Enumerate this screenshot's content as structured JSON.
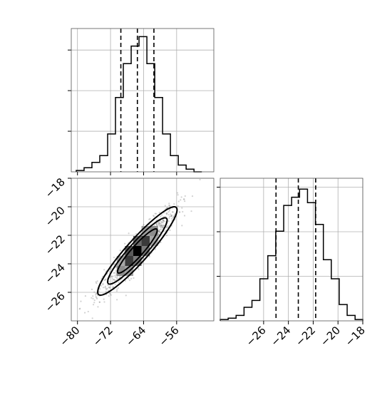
{
  "chart_data": [
    {
      "id": "hist_x",
      "type": "histogram",
      "title": "",
      "xlabel": "",
      "ylabel": "",
      "xlim": [
        -81.5,
        -47
      ],
      "xticks": [
        -80,
        -72,
        -64,
        -56
      ],
      "xtick_labels_visible": false,
      "yticks_count": 3,
      "ytick_labels_visible": false,
      "grid": true,
      "bin_edges": [
        -80.3,
        -78.4,
        -76.5,
        -74.6,
        -72.7,
        -70.8,
        -68.9,
        -67.0,
        -65.1,
        -63.2,
        -61.3,
        -59.4,
        -57.5,
        -55.6,
        -53.7,
        -51.8,
        -49.9
      ],
      "counts": [
        0.01,
        0.03,
        0.07,
        0.12,
        0.28,
        0.55,
        0.8,
        0.93,
        1.0,
        0.8,
        0.55,
        0.28,
        0.12,
        0.05,
        0.02,
        0.0
      ],
      "quantiles": [
        -69.5,
        -65.5,
        -61.5
      ],
      "line_color": "#000000"
    },
    {
      "id": "hist_y",
      "type": "histogram",
      "title": "",
      "xlabel": "",
      "ylabel": "",
      "xlim": [
        -29.5,
        -18
      ],
      "xticks": [
        -26,
        -24,
        -22,
        -20,
        -18
      ],
      "xtick_labels": [
        "−26",
        "−24",
        "−22",
        "−20",
        "−18"
      ],
      "yticks_count": 3,
      "ytick_labels_visible": false,
      "grid": true,
      "bin_edges": [
        -29.5,
        -28.86,
        -28.22,
        -27.58,
        -26.94,
        -26.3,
        -25.66,
        -25.02,
        -24.38,
        -23.74,
        -23.1,
        -22.46,
        -21.82,
        -21.18,
        -20.54,
        -19.9,
        -19.26,
        -18.62,
        -18.0
      ],
      "counts": [
        0.01,
        0.02,
        0.04,
        0.1,
        0.15,
        0.31,
        0.48,
        0.66,
        0.85,
        0.91,
        0.97,
        0.87,
        0.71,
        0.45,
        0.31,
        0.12,
        0.04,
        0.01
      ],
      "quantiles": [
        -25.0,
        -23.2,
        -21.8
      ],
      "line_color": "#000000"
    },
    {
      "id": "hist2d",
      "type": "scatter",
      "title": "",
      "xlabel": "",
      "ylabel": "",
      "xlim": [
        -81.5,
        -47
      ],
      "ylim": [
        -28,
        -18
      ],
      "xticks": [
        -80,
        -72,
        -64,
        -56
      ],
      "xtick_labels": [
        "−80",
        "−72",
        "−64",
        "−56"
      ],
      "yticks": [
        -18,
        -20,
        -22,
        -24,
        -26
      ],
      "ytick_labels": [
        "−18",
        "−20",
        "−22",
        "−24",
        "−26"
      ],
      "grid": true,
      "center": [
        -65.5,
        -23.1
      ],
      "sigma": [
        4.8,
        1.55
      ],
      "correlation": 0.93,
      "point_count": 900,
      "point_color": "#7f7f7f",
      "density_cells": [
        {
          "x": -65.5,
          "y": -23.1,
          "shade": "#000000"
        },
        {
          "x": -67.5,
          "y": -23.8,
          "shade": "#3a3a3a"
        },
        {
          "x": -63.5,
          "y": -22.4,
          "shade": "#3a3a3a"
        },
        {
          "x": -65.5,
          "y": -22.4,
          "shade": "#6a6a6a"
        },
        {
          "x": -67.5,
          "y": -23.1,
          "shade": "#5a5a5a"
        },
        {
          "x": -63.5,
          "y": -23.1,
          "shade": "#7a7a7a"
        },
        {
          "x": -65.5,
          "y": -23.8,
          "shade": "#7a7a7a"
        },
        {
          "x": -69.5,
          "y": -24.5,
          "shade": "#8c8c8c"
        },
        {
          "x": -61.5,
          "y": -21.7,
          "shade": "#8c8c8c"
        },
        {
          "x": -69.5,
          "y": -23.8,
          "shade": "#a8a8a8"
        },
        {
          "x": -61.5,
          "y": -22.4,
          "shade": "#a8a8a8"
        },
        {
          "x": -67.5,
          "y": -24.5,
          "shade": "#a0a0a0"
        },
        {
          "x": -63.5,
          "y": -21.7,
          "shade": "#a0a0a0"
        }
      ],
      "contour_levels_sigma": [
        1.0,
        1.5,
        2.0
      ],
      "line_color": "#000000"
    }
  ]
}
